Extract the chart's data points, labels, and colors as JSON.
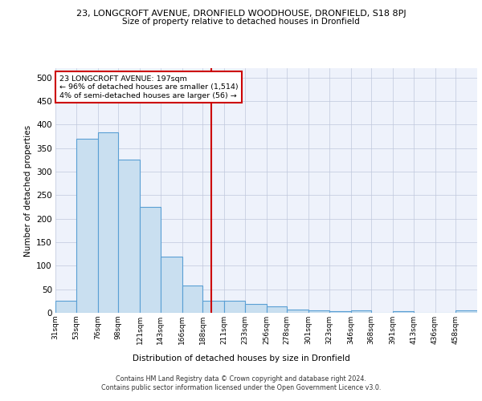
{
  "title_line1": "23, LONGCROFT AVENUE, DRONFIELD WOODHOUSE, DRONFIELD, S18 8PJ",
  "title_line2": "Size of property relative to detached houses in Dronfield",
  "xlabel": "Distribution of detached houses by size in Dronfield",
  "ylabel": "Number of detached properties",
  "footer": "Contains HM Land Registry data © Crown copyright and database right 2024.\nContains public sector information licensed under the Open Government Licence v3.0.",
  "annotation_line1": "23 LONGCROFT AVENUE: 197sqm",
  "annotation_line2": "← 96% of detached houses are smaller (1,514)",
  "annotation_line3": "4% of semi-detached houses are larger (56) →",
  "bar_edges": [
    31,
    53,
    76,
    98,
    121,
    143,
    166,
    188,
    211,
    233,
    256,
    278,
    301,
    323,
    346,
    368,
    391,
    413,
    436,
    458,
    481
  ],
  "bar_heights": [
    25,
    370,
    383,
    325,
    225,
    120,
    58,
    25,
    25,
    18,
    14,
    7,
    5,
    4,
    5,
    0,
    4,
    0,
    0,
    5
  ],
  "bar_color": "#c9dff0",
  "bar_edge_color": "#5a9fd4",
  "vline_x": 197,
  "vline_color": "#cc0000",
  "annotation_box_color": "#cc0000",
  "background_color": "#eef2fb",
  "ylim": [
    0,
    520
  ],
  "yticks": [
    0,
    50,
    100,
    150,
    200,
    250,
    300,
    350,
    400,
    450,
    500
  ]
}
